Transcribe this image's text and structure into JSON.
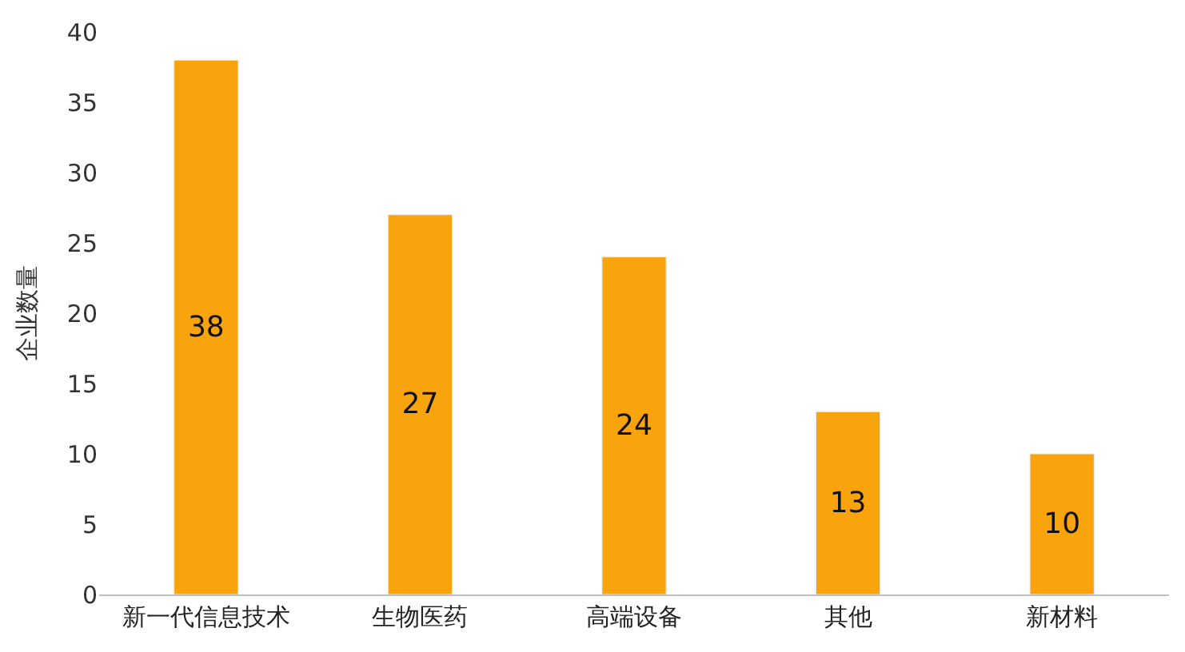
{
  "chart_data": {
    "type": "bar",
    "ylabel": "企业数量",
    "categories": [
      "新一代信息技术",
      "生物医药",
      "高端设备",
      "其他",
      "新材料"
    ],
    "values": [
      38,
      27,
      24,
      13,
      10
    ],
    "color": "#f9a40c",
    "ylim": [
      0,
      40
    ],
    "yticks": [
      0,
      5,
      10,
      15,
      20,
      25,
      30,
      35,
      40
    ],
    "data_labels": true
  }
}
